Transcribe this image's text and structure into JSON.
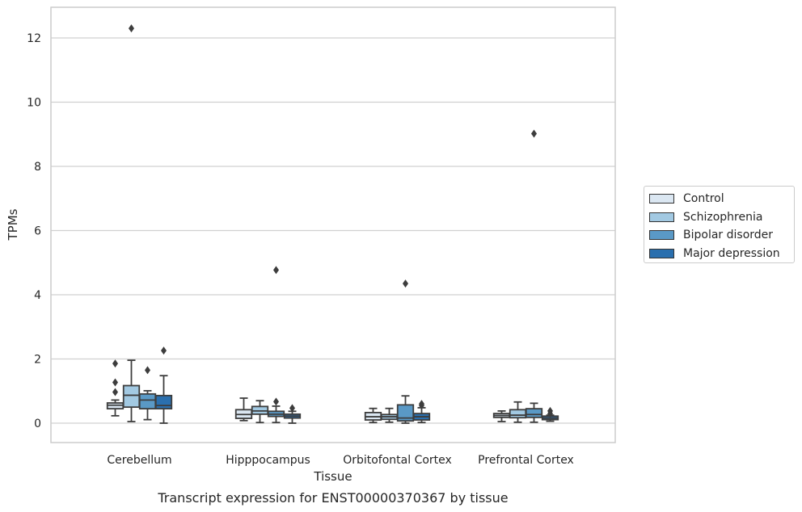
{
  "chart_data": {
    "type": "box",
    "title": "Transcript expression for ENST00000370367 by tissue",
    "xlabel": "Tissue",
    "ylabel": "TPMs",
    "ylim": [
      -0.6,
      12.9
    ],
    "yticks": [
      0,
      2,
      4,
      6,
      8,
      10,
      12
    ],
    "grid": true,
    "legend_position": "right",
    "categories": [
      "Cerebellum",
      "Hipppocampus",
      "Orbitofontal Cortex",
      "Prefrontal Cortex"
    ],
    "series": [
      {
        "name": "Control",
        "color": "#dbe7f2",
        "boxes": [
          {
            "min": 0.23,
            "q1": 0.45,
            "median": 0.56,
            "q3": 0.63,
            "max": 0.72,
            "outliers": [
              1.86,
              1.27,
              0.97
            ]
          },
          {
            "min": 0.08,
            "q1": 0.15,
            "median": 0.27,
            "q3": 0.42,
            "max": 0.78,
            "outliers": []
          },
          {
            "min": 0.02,
            "q1": 0.1,
            "median": 0.2,
            "q3": 0.33,
            "max": 0.46,
            "outliers": []
          },
          {
            "min": 0.05,
            "q1": 0.18,
            "median": 0.24,
            "q3": 0.3,
            "max": 0.38,
            "outliers": []
          }
        ]
      },
      {
        "name": "Schizophrenia",
        "color": "#a2c9e2",
        "boxes": [
          {
            "min": 0.05,
            "q1": 0.5,
            "median": 0.87,
            "q3": 1.17,
            "max": 1.96,
            "outliers": [
              12.3
            ]
          },
          {
            "min": 0.02,
            "q1": 0.28,
            "median": 0.38,
            "q3": 0.52,
            "max": 0.7,
            "outliers": []
          },
          {
            "min": 0.03,
            "q1": 0.12,
            "median": 0.2,
            "q3": 0.27,
            "max": 0.46,
            "outliers": []
          },
          {
            "min": 0.03,
            "q1": 0.17,
            "median": 0.25,
            "q3": 0.42,
            "max": 0.66,
            "outliers": []
          }
        ]
      },
      {
        "name": "Bipolar disorder",
        "color": "#5a99c6",
        "boxes": [
          {
            "min": 0.11,
            "q1": 0.45,
            "median": 0.72,
            "q3": 0.91,
            "max": 1.01,
            "outliers": [
              1.65
            ]
          },
          {
            "min": 0.02,
            "q1": 0.21,
            "median": 0.28,
            "q3": 0.37,
            "max": 0.53,
            "outliers": [
              0.67,
              4.77
            ]
          },
          {
            "min": 0.0,
            "q1": 0.07,
            "median": 0.16,
            "q3": 0.57,
            "max": 0.85,
            "outliers": [
              4.35
            ]
          },
          {
            "min": 0.03,
            "q1": 0.18,
            "median": 0.27,
            "q3": 0.45,
            "max": 0.62,
            "outliers": [
              9.02
            ]
          }
        ]
      },
      {
        "name": "Major depression",
        "color": "#2a6fae",
        "boxes": [
          {
            "min": 0.0,
            "q1": 0.45,
            "median": 0.55,
            "q3": 0.86,
            "max": 1.48,
            "outliers": [
              2.26
            ]
          },
          {
            "min": 0.0,
            "q1": 0.16,
            "median": 0.22,
            "q3": 0.28,
            "max": 0.37,
            "outliers": [
              0.47
            ]
          },
          {
            "min": 0.02,
            "q1": 0.1,
            "median": 0.2,
            "q3": 0.3,
            "max": 0.48,
            "outliers": [
              0.6,
              0.55
            ]
          },
          {
            "min": 0.06,
            "q1": 0.11,
            "median": 0.16,
            "q3": 0.22,
            "max": 0.25,
            "outliers": [
              0.38,
              0.3
            ]
          }
        ]
      }
    ]
  }
}
